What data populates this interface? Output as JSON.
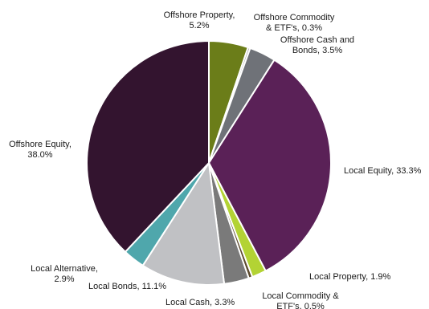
{
  "chart_data": {
    "type": "pie",
    "title": "",
    "slices": [
      {
        "name": "Offshore Property",
        "value": 5.2,
        "label_lines": [
          "Offshore Property,",
          "5.2%"
        ],
        "color": "#6b7d19"
      },
      {
        "name": "Offshore Commodity & ETF's",
        "value": 0.3,
        "label_lines": [
          "Offshore Commodity",
          "& ETF's, 0.3%"
        ],
        "color": "#a8a8a8"
      },
      {
        "name": "Offshore Cash and Bonds",
        "value": 3.5,
        "label_lines": [
          "Offshore Cash and",
          "Bonds, 3.5%"
        ],
        "color": "#6f7278"
      },
      {
        "name": "Local Equity",
        "value": 33.3,
        "label_lines": [
          "Local Equity, 33.3%"
        ],
        "color": "#5a2157"
      },
      {
        "name": "Local Property",
        "value": 1.9,
        "label_lines": [
          "Local Property, 1.9%"
        ],
        "color": "#b3d334"
      },
      {
        "name": "Local Commodity & ETF's",
        "value": 0.5,
        "label_lines": [
          "Local Commodity &",
          "ETF's, 0.5%"
        ],
        "color": "#5c4a2e"
      },
      {
        "name": "Local Cash",
        "value": 3.3,
        "label_lines": [
          "Local Cash, 3.3%"
        ],
        "color": "#7a7a7a"
      },
      {
        "name": "Local Bonds",
        "value": 11.1,
        "label_lines": [
          "Local Bonds, 11.1%"
        ],
        "color": "#c0c1c4"
      },
      {
        "name": "Local Alternative",
        "value": 2.9,
        "label_lines": [
          "Local Alternative,",
          "2.9%"
        ],
        "color": "#4fa7ac"
      },
      {
        "name": "Offshore Equity",
        "value": 38.0,
        "label_lines": [
          "Offshore Equity,",
          "38.0%"
        ],
        "color": "#33142f"
      }
    ]
  }
}
